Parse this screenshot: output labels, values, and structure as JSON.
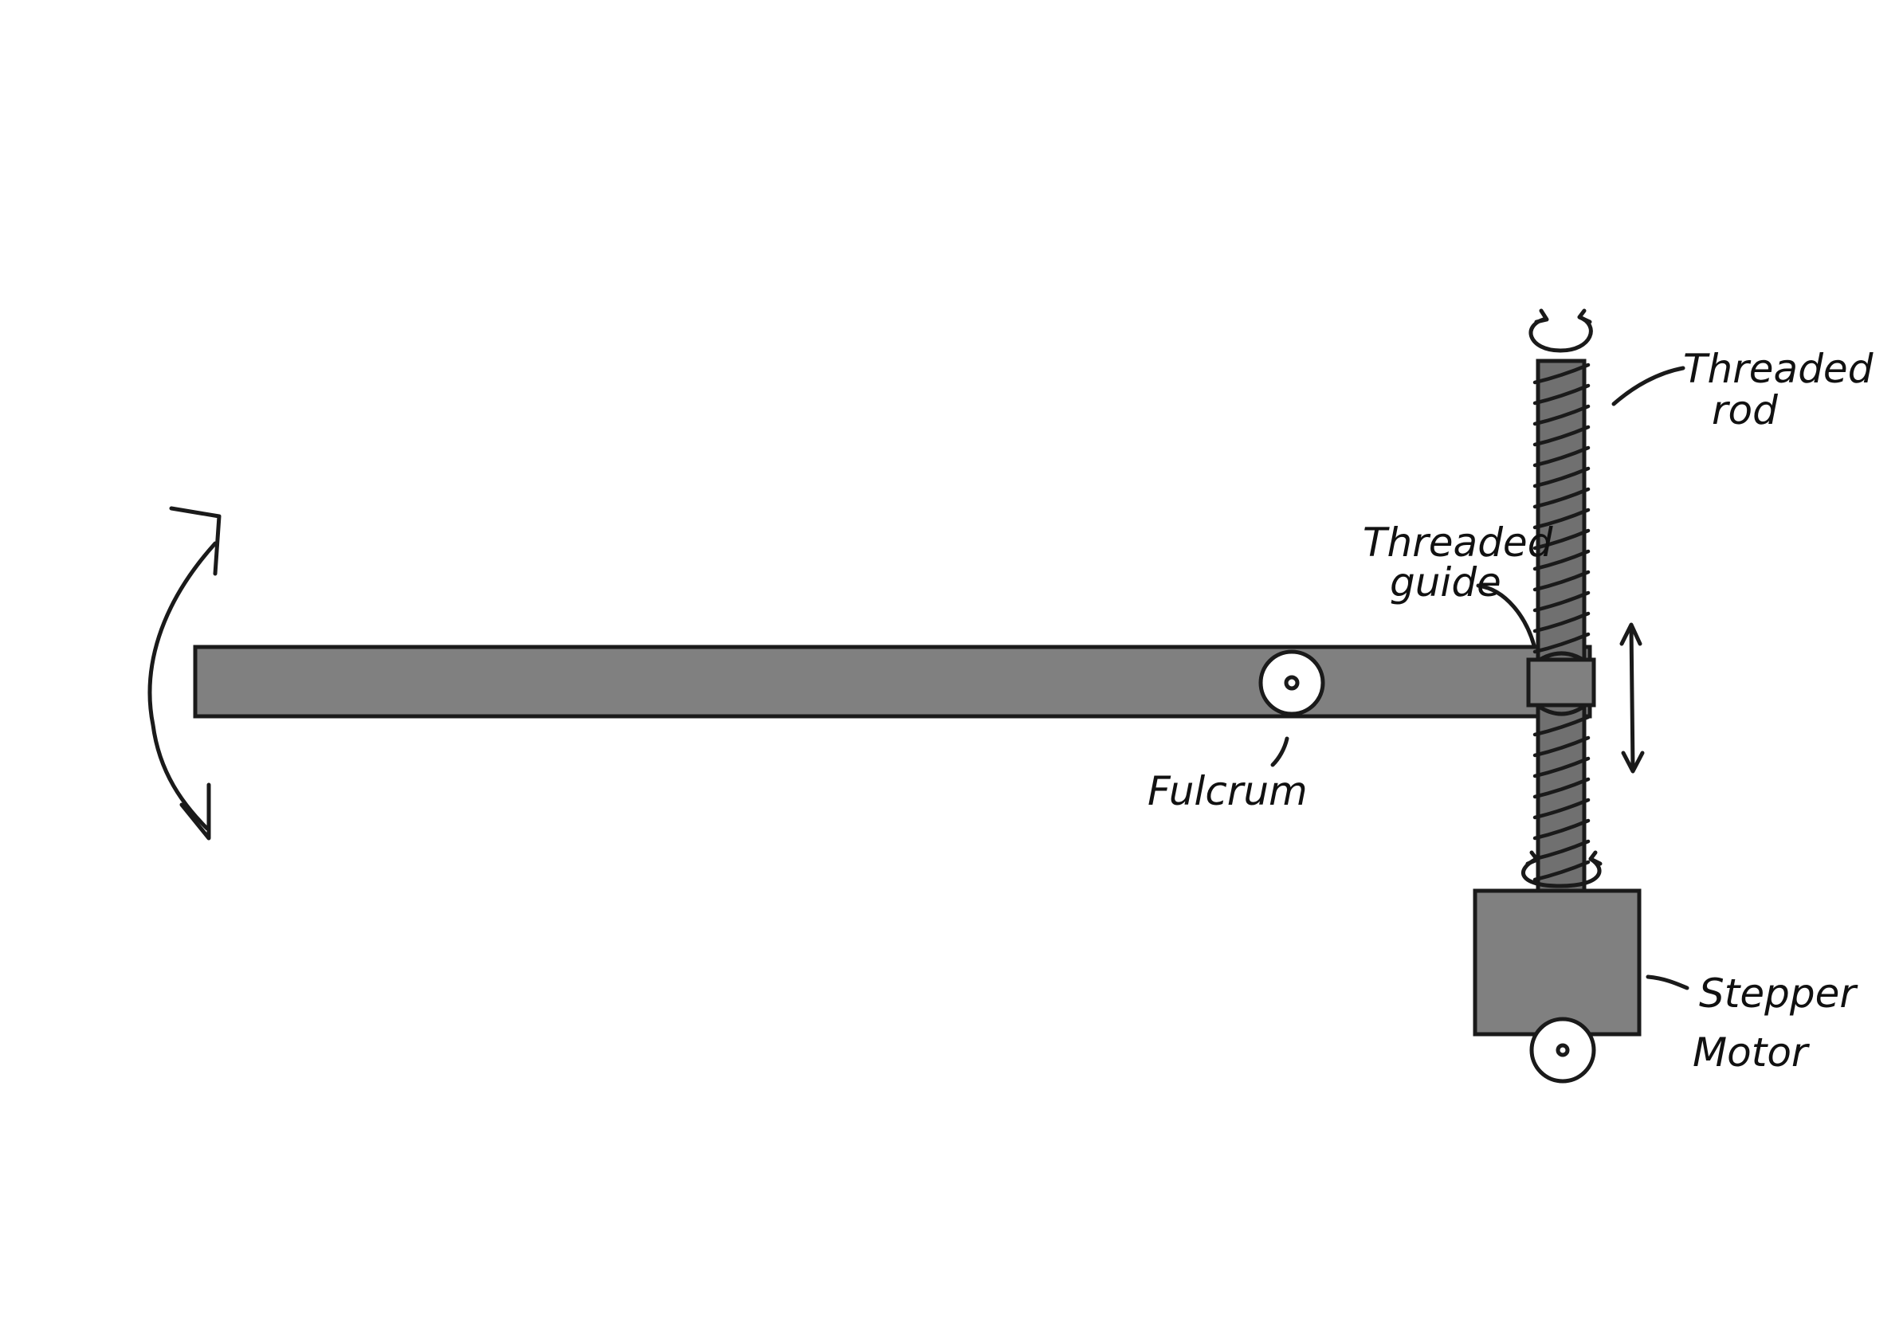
{
  "diagram": {
    "labels": {
      "threaded_rod": [
        "Threaded",
        "rod"
      ],
      "threaded_guide": [
        "Threaded",
        "guide"
      ],
      "fulcrum": "Fulcrum",
      "stepper_motor": [
        "Stepper",
        "Motor"
      ]
    },
    "colors": {
      "part_fill": "#808080",
      "outline": "#1a1a1a",
      "background": "#ffffff"
    },
    "icons": {
      "lever_motion": "curved-double-arrow-icon",
      "guide_motion": "vertical-double-arrow-icon",
      "rod_rotation": "rotation-arrow-icon"
    }
  }
}
